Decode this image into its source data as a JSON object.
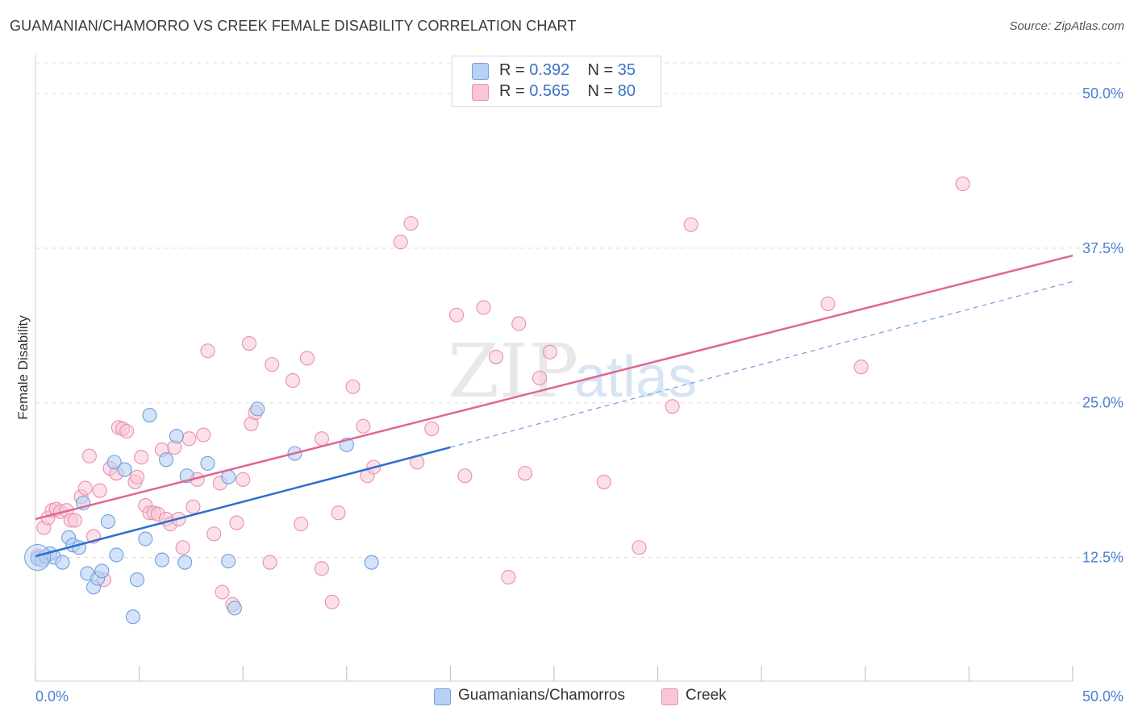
{
  "title": "GUAMANIAN/CHAMORRO VS CREEK FEMALE DISABILITY CORRELATION CHART",
  "source": "Source: ZipAtlas.com",
  "watermark": {
    "zip": "ZIP",
    "atlas": "atlas"
  },
  "legend": {
    "rows": [
      {
        "r_label": "R =",
        "r_value": "0.392",
        "n_label": "N =",
        "n_value": "35"
      },
      {
        "r_label": "R =",
        "r_value": "0.565",
        "n_label": "N =",
        "n_value": "80"
      }
    ]
  },
  "bottom_legend": {
    "series1": "Guamanians/Chamorros",
    "series2": "Creek"
  },
  "colors": {
    "blue_fill": "#b8d0f4",
    "blue_stroke": "#6f9fdf",
    "blue_line": "#2a6fd1",
    "pink_fill": "#f8c6d6",
    "pink_stroke": "#e98fad",
    "pink_line": "#e0668f",
    "tick_text": "#4a7fd0",
    "grid": "#dddddd"
  },
  "chart_data": {
    "type": "scatter",
    "title": "GUAMANIAN/CHAMORRO VS CREEK FEMALE DISABILITY CORRELATION CHART",
    "xlabel": "",
    "ylabel": "Female Disability",
    "xlim": [
      0,
      50
    ],
    "ylim": [
      2.5,
      53
    ],
    "x_tick_labels": [
      "0.0%",
      "50.0%"
    ],
    "y_ticks": [
      12.5,
      25.0,
      37.5,
      50.0
    ],
    "y_tick_labels": [
      "12.5%",
      "25.0%",
      "37.5%",
      "50.0%"
    ],
    "series": [
      {
        "name": "Guamanians/Chamorros",
        "color": "blue",
        "R": 0.392,
        "N": 35,
        "trend": {
          "x0": 0,
          "y0": 12.6,
          "x1": 20,
          "y1": 21.4,
          "dash_to_x": 50,
          "dash_to_y": 34.8
        },
        "points": [
          [
            0.1,
            12.4
          ],
          [
            0.3,
            12.3
          ],
          [
            0.5,
            12.6
          ],
          [
            0.7,
            12.8
          ],
          [
            0.9,
            12.5
          ],
          [
            1.3,
            12.1
          ],
          [
            1.6,
            14.1
          ],
          [
            1.8,
            13.5
          ],
          [
            2.1,
            13.3
          ],
          [
            2.3,
            16.9
          ],
          [
            2.5,
            11.2
          ],
          [
            2.8,
            10.1
          ],
          [
            3.0,
            10.8
          ],
          [
            3.2,
            11.4
          ],
          [
            3.5,
            15.4
          ],
          [
            3.8,
            20.2
          ],
          [
            3.9,
            12.7
          ],
          [
            4.3,
            19.6
          ],
          [
            4.7,
            7.7
          ],
          [
            4.9,
            10.7
          ],
          [
            5.3,
            14.0
          ],
          [
            5.5,
            24.0
          ],
          [
            6.1,
            12.3
          ],
          [
            6.3,
            20.4
          ],
          [
            6.8,
            22.3
          ],
          [
            7.2,
            12.1
          ],
          [
            7.3,
            19.1
          ],
          [
            8.3,
            20.1
          ],
          [
            9.3,
            19.0
          ],
          [
            9.3,
            12.2
          ],
          [
            9.6,
            8.4
          ],
          [
            10.7,
            24.5
          ],
          [
            12.5,
            20.9
          ],
          [
            15.0,
            21.6
          ],
          [
            16.2,
            12.1
          ]
        ]
      },
      {
        "name": "Creek",
        "color": "pink",
        "R": 0.565,
        "N": 80,
        "trend": {
          "x0": 0,
          "y0": 15.6,
          "x1": 50,
          "y1": 36.9
        },
        "points": [
          [
            0.1,
            12.6
          ],
          [
            0.4,
            14.9
          ],
          [
            0.6,
            15.7
          ],
          [
            0.8,
            16.3
          ],
          [
            1.0,
            16.4
          ],
          [
            1.2,
            16.2
          ],
          [
            1.5,
            16.3
          ],
          [
            1.7,
            15.5
          ],
          [
            1.9,
            15.5
          ],
          [
            2.2,
            17.4
          ],
          [
            2.4,
            18.1
          ],
          [
            2.6,
            20.7
          ],
          [
            2.8,
            14.2
          ],
          [
            3.1,
            17.9
          ],
          [
            3.3,
            10.7
          ],
          [
            3.6,
            19.7
          ],
          [
            3.9,
            19.3
          ],
          [
            4.0,
            23.0
          ],
          [
            4.2,
            22.9
          ],
          [
            4.4,
            22.7
          ],
          [
            4.8,
            18.6
          ],
          [
            4.9,
            19.0
          ],
          [
            5.1,
            20.6
          ],
          [
            5.3,
            16.7
          ],
          [
            5.5,
            16.1
          ],
          [
            5.7,
            16.1
          ],
          [
            5.9,
            16.0
          ],
          [
            6.1,
            21.2
          ],
          [
            6.3,
            15.6
          ],
          [
            6.5,
            15.2
          ],
          [
            6.7,
            21.4
          ],
          [
            6.9,
            15.6
          ],
          [
            7.1,
            13.3
          ],
          [
            7.4,
            22.1
          ],
          [
            7.6,
            16.6
          ],
          [
            7.8,
            18.8
          ],
          [
            8.1,
            22.4
          ],
          [
            8.3,
            29.2
          ],
          [
            8.6,
            14.4
          ],
          [
            8.9,
            18.5
          ],
          [
            9.0,
            9.7
          ],
          [
            9.5,
            8.7
          ],
          [
            9.7,
            15.3
          ],
          [
            10.0,
            18.8
          ],
          [
            10.3,
            29.8
          ],
          [
            10.4,
            23.3
          ],
          [
            10.6,
            24.2
          ],
          [
            11.3,
            12.1
          ],
          [
            11.4,
            28.1
          ],
          [
            12.4,
            26.8
          ],
          [
            12.8,
            15.2
          ],
          [
            13.1,
            28.6
          ],
          [
            13.8,
            11.6
          ],
          [
            13.8,
            22.1
          ],
          [
            14.3,
            8.9
          ],
          [
            14.6,
            16.1
          ],
          [
            15.3,
            26.3
          ],
          [
            15.8,
            23.1
          ],
          [
            16.0,
            19.1
          ],
          [
            16.3,
            19.8
          ],
          [
            17.6,
            38.0
          ],
          [
            18.1,
            39.5
          ],
          [
            18.4,
            20.2
          ],
          [
            19.1,
            22.9
          ],
          [
            20.3,
            32.1
          ],
          [
            20.7,
            19.1
          ],
          [
            21.6,
            32.7
          ],
          [
            22.2,
            28.7
          ],
          [
            22.8,
            10.9
          ],
          [
            23.3,
            31.4
          ],
          [
            23.6,
            19.3
          ],
          [
            24.3,
            27.0
          ],
          [
            24.8,
            29.1
          ],
          [
            27.4,
            18.6
          ],
          [
            29.1,
            13.3
          ],
          [
            30.7,
            24.7
          ],
          [
            31.6,
            39.4
          ],
          [
            38.2,
            33.0
          ],
          [
            39.8,
            27.9
          ],
          [
            44.7,
            42.7
          ]
        ]
      }
    ]
  }
}
